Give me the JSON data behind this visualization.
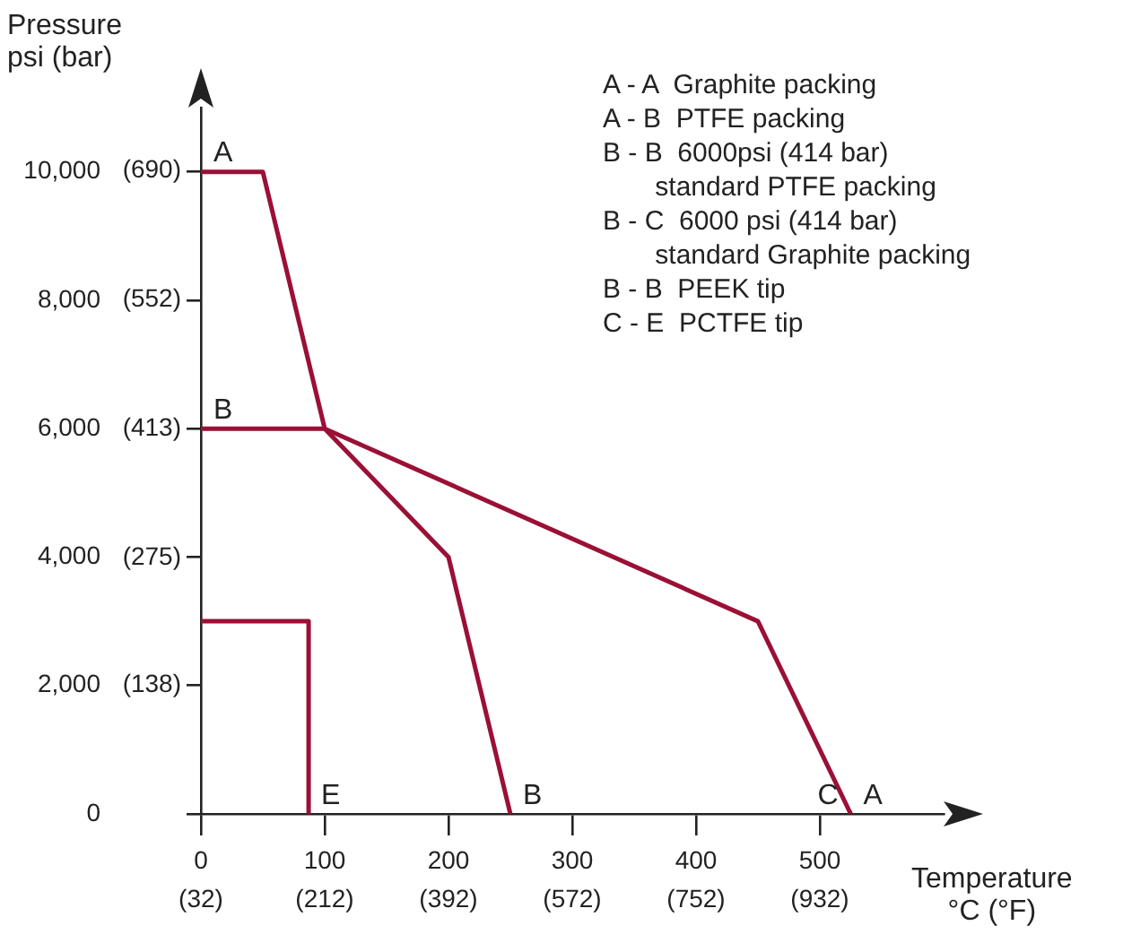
{
  "chart_data": {
    "type": "line",
    "xlabel": "Temperature\n°C (°F)",
    "ylabel": "Pressure\npsi (bar)",
    "xlim": [
      0,
      600
    ],
    "ylim": [
      0,
      11000
    ],
    "xticks": [
      0,
      100,
      200,
      300,
      400,
      500
    ],
    "x2lim": [
      32,
      1112
    ],
    "x2ticks": [
      {
        "value": 32,
        "label": "(32)"
      },
      {
        "value": 212,
        "label": "(212)"
      },
      {
        "value": 392,
        "label": "(392)"
      },
      {
        "value": 572,
        "label": "(572)"
      },
      {
        "value": 752,
        "label": "(752)"
      },
      {
        "value": 932,
        "label": "(932)"
      }
    ],
    "yticks": [
      0,
      {
        "value": 2000,
        "label": "2,000"
      },
      {
        "value": 4000,
        "label": "4,000"
      },
      {
        "value": 6000,
        "label": "6,000"
      },
      {
        "value": 8000,
        "label": "8,000"
      },
      {
        "value": 10000,
        "label": "10,000"
      }
    ],
    "y2lim": [
      0,
      758
    ],
    "y2ticks": [
      {
        "value": 138,
        "label": "(138)"
      },
      {
        "value": 275,
        "label": "(275)"
      },
      {
        "value": 413,
        "label": "(413)"
      },
      {
        "value": 552,
        "label": "(552)"
      },
      {
        "value": 690,
        "label": "(690)"
      }
    ],
    "series": [
      {
        "color": "#9b1036",
        "x": [
          0,
          50,
          100,
          450,
          525
        ],
        "values": [
          10000,
          10000,
          6000,
          3000,
          0
        ]
      },
      {
        "color": "#9b1036",
        "x": [
          0,
          100,
          200,
          250
        ],
        "values": [
          6000,
          6000,
          4000,
          0
        ]
      },
      {
        "color": "#9b1036",
        "x": [
          0,
          87,
          87
        ],
        "values": [
          3000,
          3000,
          0
        ]
      }
    ],
    "marker": "none",
    "grid": false,
    "legend": false,
    "annotations": [
      "A - A  Graphite packing",
      "A - B  PTFE packing",
      "B - B  6000psi (414 bar)\n       standard PTFE packing",
      "B - C  6000 psi (414 bar)\n       standard Graphite packing",
      "B - B  PEEK tip",
      "C - E  PCTFE tip",
      {
        "text": "A",
        "x": 0,
        "y": 10000
      },
      {
        "text": "B",
        "x": 0,
        "y": 6000
      },
      {
        "text": "E",
        "x": 87,
        "y": 0
      },
      {
        "text": "B",
        "x": 250,
        "y": 0
      },
      {
        "text": "C",
        "x": 525,
        "y": 0
      },
      {
        "text": "A",
        "x": 525,
        "y": 0
      }
    ]
  }
}
